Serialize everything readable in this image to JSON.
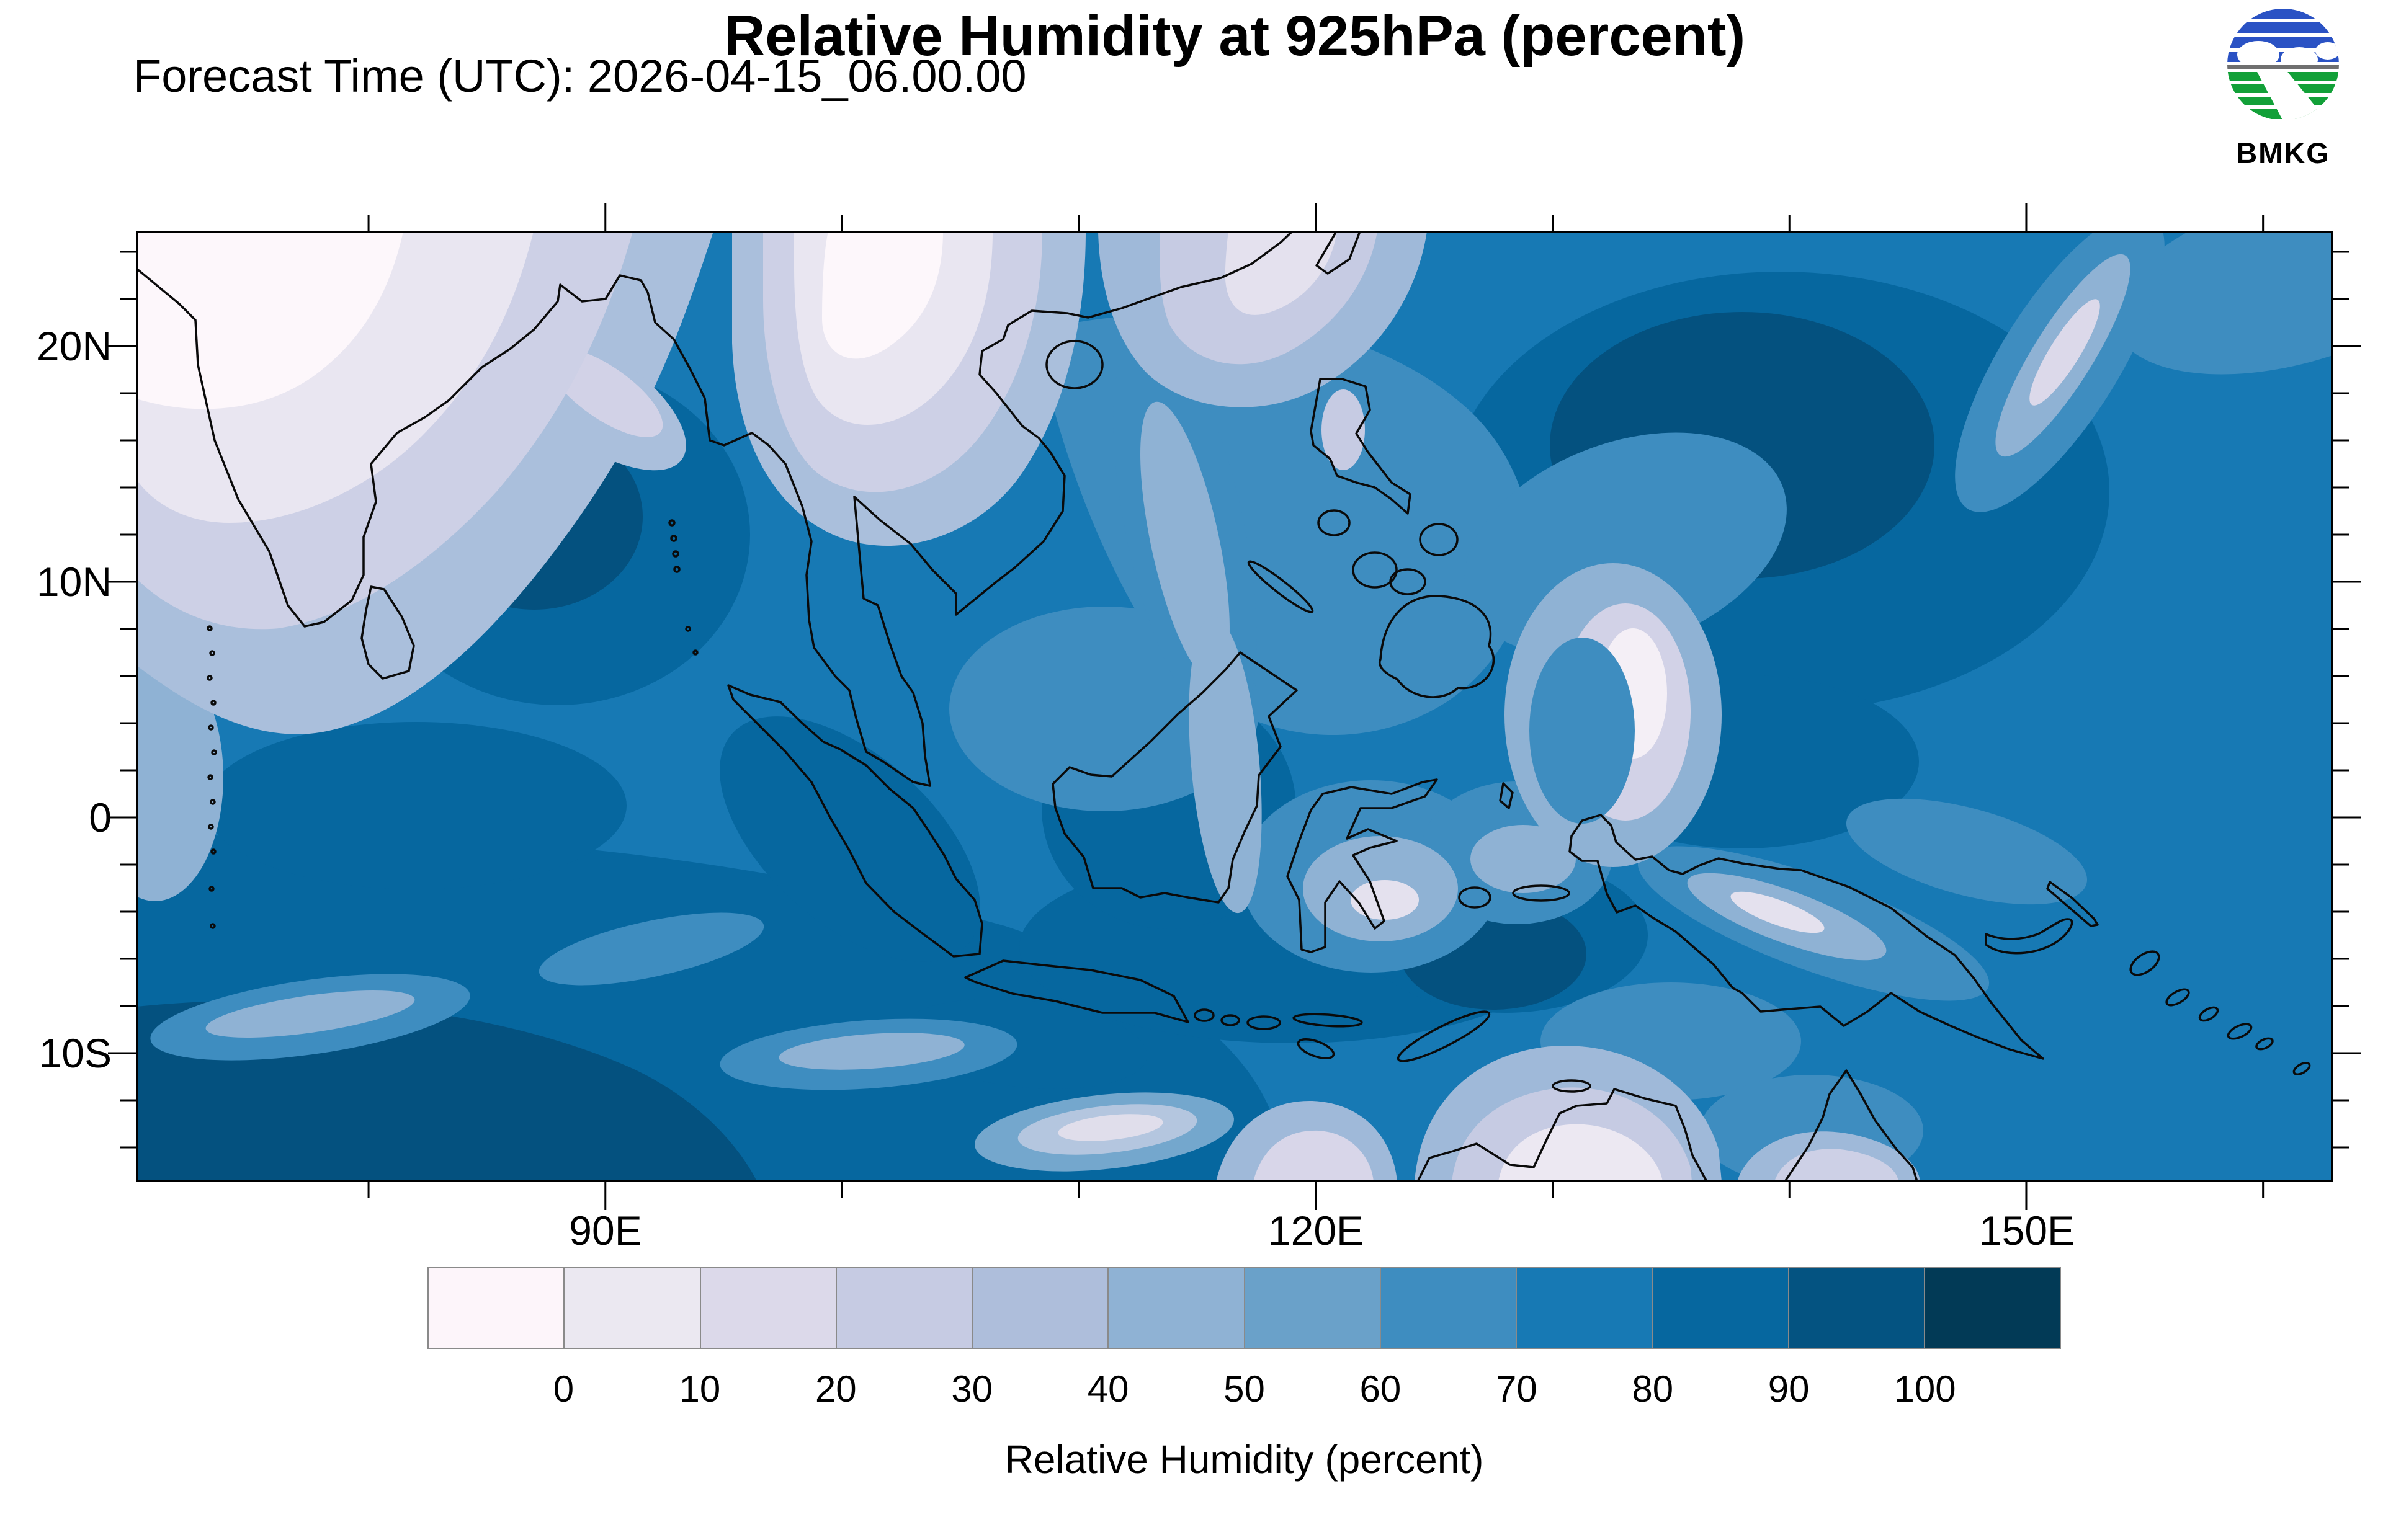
{
  "header": {
    "title": "Relative Humidity at 925hPa (percent)",
    "subtitle": "Forecast Time (UTC): 2026-04-15_06.00.00",
    "logo_text": "BMKG"
  },
  "axes": {
    "y": {
      "ticks": [
        "20N",
        "10N",
        "0",
        "10S"
      ]
    },
    "x": {
      "ticks": [
        "90E",
        "120E",
        "150E"
      ]
    }
  },
  "colorbar": {
    "title": "Relative Humidity (percent)",
    "tick_labels": [
      "0",
      "10",
      "20",
      "30",
      "40",
      "50",
      "60",
      "70",
      "80",
      "90",
      "100"
    ],
    "colors": [
      "#fdf5fa",
      "#ebe8f1",
      "#dcd9ea",
      "#c6cbe3",
      "#aebedb",
      "#8fb2d4",
      "#6aa1c9",
      "#3e8dc0",
      "#1779b4",
      "#06679f",
      "#045381",
      "#023a56"
    ]
  },
  "chart_data": {
    "type": "heatmap",
    "title": "Relative Humidity at 925hPa (percent)",
    "subtitle": "Forecast Time (UTC): 2026-04-15_06.00.00",
    "variable": "Relative Humidity",
    "level_hPa": 925,
    "units": "percent",
    "source_logo": "BMKG",
    "levels": [
      0,
      10,
      20,
      30,
      40,
      50,
      60,
      70,
      80,
      90,
      100
    ],
    "palette": [
      "#fdf5fa",
      "#ebe8f1",
      "#dcd9ea",
      "#c6cbe3",
      "#aebedb",
      "#8fb2d4",
      "#6aa1c9",
      "#3e8dc0",
      "#1779b4",
      "#06679f",
      "#045381",
      "#023a56"
    ],
    "colorbar_title": "Relative Humidity (percent)",
    "x_axis": {
      "tick_labels": [
        "90E",
        "120E",
        "150E"
      ],
      "lon_range_deg_e": [
        70.2,
        162.9
      ],
      "major_tick_interval_deg": 30,
      "minor_tick_interval_deg": 10
    },
    "y_axis": {
      "tick_labels": [
        "20N",
        "10N",
        "0",
        "10S"
      ],
      "lat_range_deg_n": [
        -15.4,
        24.9
      ],
      "major_tick_interval_deg": 10,
      "minor_tick_interval_deg": 2
    },
    "visible_features": [
      "Low humidity (white/lavender, 0-40%) over interior India, Pakistan, Indochina and southeast China",
      "Low humidity over northwest Australia, Timor and the bottom-centre ocean south of Java",
      "Pale curved dry band east of Luzon and pale diagonal streaks in the far northeast Pacific corner",
      "High humidity (dark blue, 80-100%) over the Bay of Bengal, equatorial Indian Ocean, Indonesian seas and a large western Pacific gyre",
      "Black coastlines drawn over the filled humidity contours"
    ]
  }
}
